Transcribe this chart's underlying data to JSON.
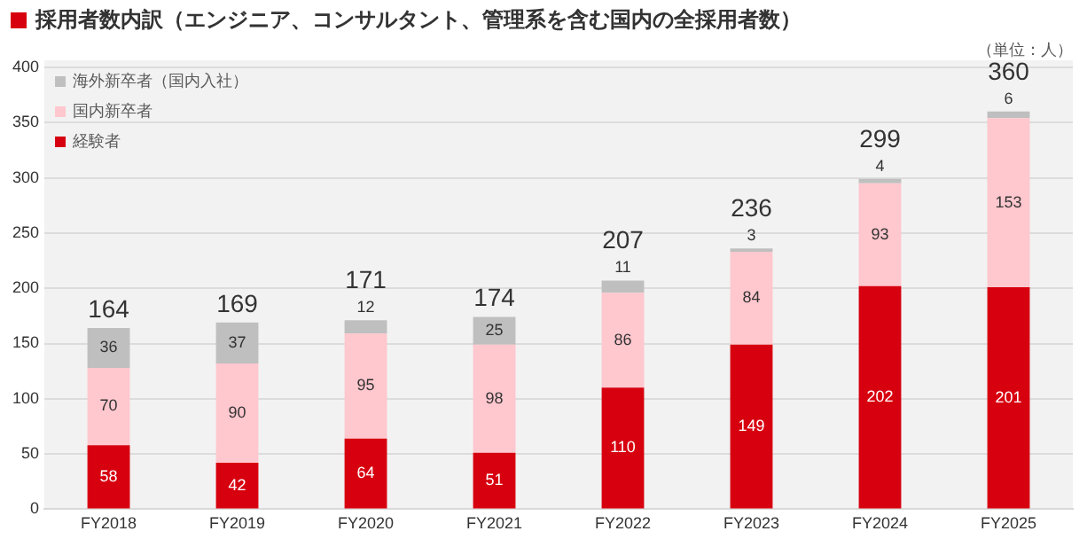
{
  "chart_data": {
    "type": "bar",
    "title": "採用者数内訳（エンジニア、コンサルタント、管理系を含む国内の全採用者数）",
    "annotations": [
      "（単位：人）"
    ],
    "categories": [
      "FY2018",
      "FY2019",
      "FY2020",
      "FY2021",
      "FY2022",
      "FY2023",
      "FY2024",
      "FY2025"
    ],
    "series": [
      {
        "name": "経験者",
        "color": "#d7000f",
        "values": [
          58,
          42,
          64,
          51,
          110,
          149,
          202,
          201
        ]
      },
      {
        "name": "国内新卒者",
        "color": "#ffc7ce",
        "values": [
          70,
          90,
          95,
          98,
          86,
          84,
          93,
          153
        ]
      },
      {
        "name": "海外新卒者（国内入社）",
        "color": "#bfbfbf",
        "values": [
          36,
          37,
          12,
          25,
          11,
          3,
          4,
          6
        ]
      }
    ],
    "stacked": true,
    "data_labels": true,
    "totals": [
      "164",
      "169",
      "171",
      "174",
      "207",
      "236",
      "299",
      "360"
    ],
    "ylim": [
      0,
      400
    ],
    "yticks": [
      0,
      50,
      100,
      150,
      200,
      250,
      300,
      350,
      400
    ],
    "grid": "y",
    "legend": "top left"
  }
}
